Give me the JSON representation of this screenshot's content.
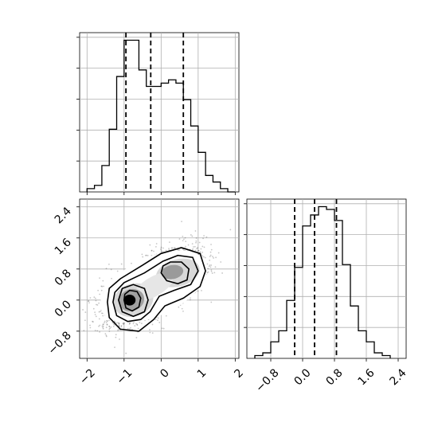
{
  "chart_data": [
    {
      "type": "histogram",
      "panel": "top-left: 1D marginal histogram of x",
      "xlim": [
        -2.2,
        2.1
      ],
      "bins": [
        -2.0,
        -1.8,
        -1.6,
        -1.4,
        -1.2,
        -1.0,
        -0.8,
        -0.6,
        -0.4,
        -0.2,
        0.0,
        0.2,
        0.4,
        0.6,
        0.8,
        1.0,
        1.2,
        1.4,
        1.6,
        1.8,
        2.0
      ],
      "values": [
        1,
        2,
        8,
        19,
        35,
        46,
        46,
        37,
        32,
        32,
        33,
        34,
        33,
        28,
        20,
        12,
        5,
        3,
        1,
        0
      ],
      "quantile_lines": [
        -0.95,
        -0.28,
        0.6
      ],
      "tick_labels_visible": false,
      "grid": true
    },
    {
      "type": "density",
      "panel": "bottom-left: 2D scatter with contours",
      "xlim": [
        -2.2,
        2.1
      ],
      "ylim": [
        -1.5,
        2.6
      ],
      "x_ticks": [
        -2,
        -1,
        0,
        1,
        2
      ],
      "y_ticks": [
        -0.8,
        0.0,
        0.8,
        1.6,
        2.4
      ],
      "x_tick_labels": [
        "−2",
        "−1",
        "0",
        "1",
        "2"
      ],
      "y_tick_labels": [
        "−0.8",
        "0.0",
        "0.8",
        "1.6",
        "2.4"
      ],
      "modes": [
        {
          "x": -0.8,
          "y": 0.0
        },
        {
          "x": 0.3,
          "y": 0.7
        }
      ],
      "grid": true
    },
    {
      "type": "histogram",
      "panel": "bottom-right: 1D marginal histogram of y",
      "xlim": [
        -1.4,
        2.6
      ],
      "bins": [
        -1.2,
        -1.0,
        -0.8,
        -0.6,
        -0.4,
        -0.2,
        0.0,
        0.2,
        0.4,
        0.6,
        0.8,
        1.0,
        1.2,
        1.4,
        1.6,
        1.8,
        2.0,
        2.2
      ],
      "values": [
        1,
        2,
        6,
        10,
        21,
        33,
        48,
        52,
        55,
        54,
        50,
        34,
        19,
        10,
        6,
        2,
        1
      ],
      "quantile_lines": [
        -0.2,
        0.3,
        0.85
      ],
      "x_ticks": [
        -0.8,
        0.0,
        0.8,
        1.6,
        2.4
      ],
      "x_tick_labels": [
        "−0.8",
        "0.0",
        "0.8",
        "1.6",
        "2.4"
      ],
      "grid": true
    }
  ]
}
